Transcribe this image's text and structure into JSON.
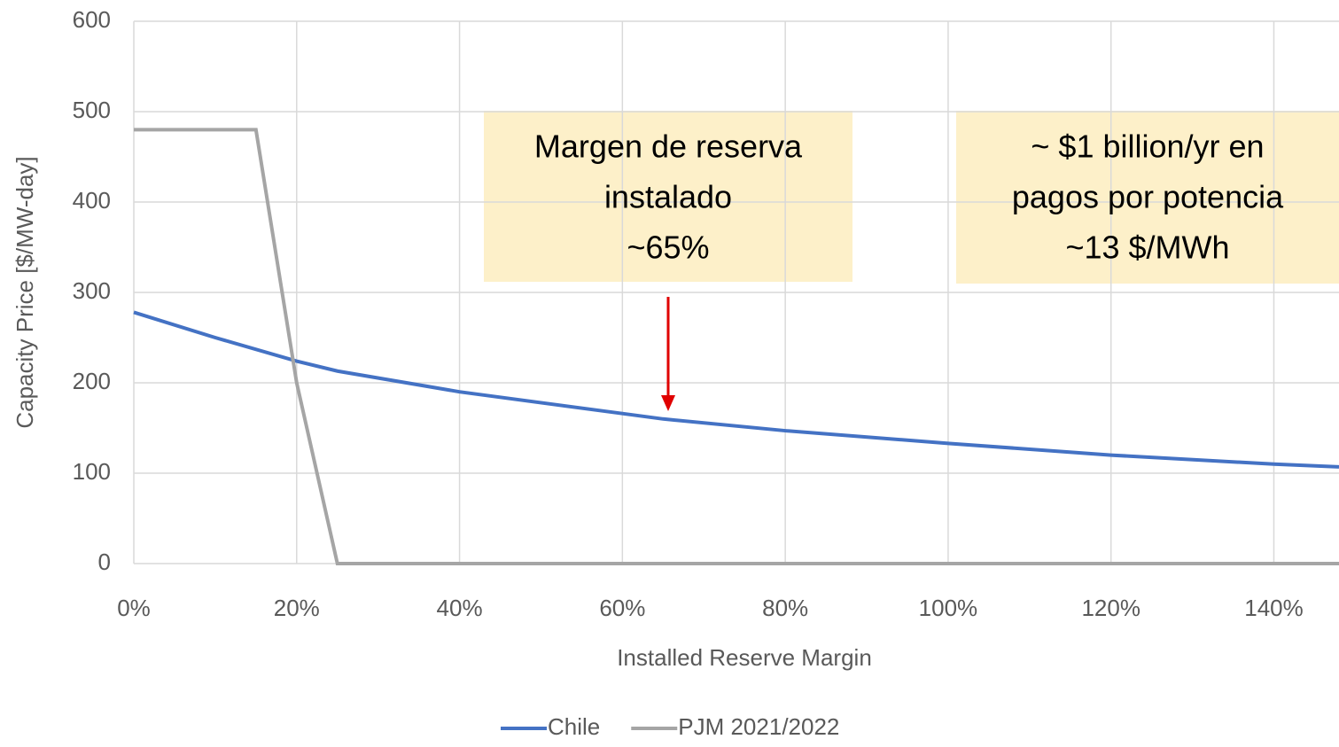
{
  "chart_data": {
    "type": "line",
    "xlabel": "Installed Reserve Margin",
    "ylabel": "Capacity Price [$/MW-day]",
    "xlim": [
      0,
      148
    ],
    "ylim": [
      0,
      600
    ],
    "xticks": [
      {
        "value": 0,
        "label": "0%"
      },
      {
        "value": 20,
        "label": "20%"
      },
      {
        "value": 40,
        "label": "40%"
      },
      {
        "value": 60,
        "label": "60%"
      },
      {
        "value": 80,
        "label": "80%"
      },
      {
        "value": 100,
        "label": "100%"
      },
      {
        "value": 120,
        "label": "120%"
      },
      {
        "value": 140,
        "label": "140%"
      }
    ],
    "yticks": [
      0,
      100,
      200,
      300,
      400,
      500,
      600
    ],
    "grid": true,
    "legend": "bottom",
    "series": [
      {
        "name": "Chile",
        "color": "#4472c4",
        "x": [
          0,
          10,
          20,
          25,
          40,
          60,
          65,
          80,
          100,
          120,
          140,
          148
        ],
        "values": [
          278,
          250,
          224,
          213,
          190,
          166,
          160,
          147,
          133,
          120,
          110,
          107
        ]
      },
      {
        "name": "PJM 2021/2022",
        "color": "#a5a5a5",
        "x": [
          0,
          15,
          20,
          25,
          148
        ],
        "values": [
          480,
          480,
          200,
          0,
          0
        ]
      }
    ],
    "annotations": [
      {
        "lines": [
          "Margen de reserva",
          "instalado",
          "~65%"
        ]
      },
      {
        "lines": [
          "~ $1 billion/yr en",
          "pagos por potencia",
          "~13 $/MWh"
        ]
      }
    ]
  }
}
